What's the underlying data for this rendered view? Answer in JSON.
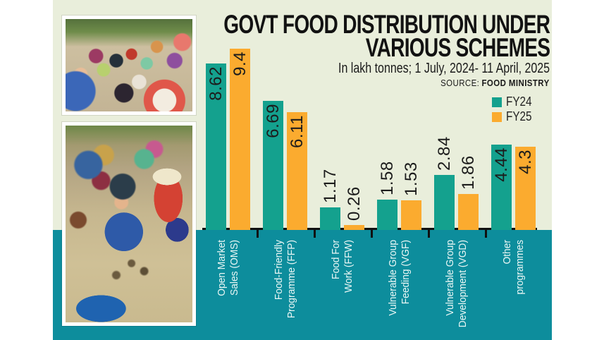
{
  "title": {
    "line1": "GOVT FOOD DISTRIBUTION UNDER",
    "line2": "VARIOUS SCHEMES"
  },
  "subtitle": "In lakh tonnes; 1 July, 2024- 11 April, 2025",
  "source": {
    "label": "SOURCE:",
    "value": "FOOD MINISTRY"
  },
  "legend": [
    {
      "label": "FY24",
      "color": "#14a18e"
    },
    {
      "label": "FY25",
      "color": "#fbab2f"
    }
  ],
  "colors": {
    "background_panel": "#e9eedb",
    "bottom_band": "#0d8d9c",
    "fy24_bar": "#14a18e",
    "fy25_bar": "#fbab2f",
    "axis": "#101010",
    "category_text": "#eaf7f5",
    "value_text": "#1c1c1c"
  },
  "photos": [
    {
      "name": "food-distribution-queue-photo"
    },
    {
      "name": "rice-weighing-distribution-photo"
    }
  ],
  "chart_data": {
    "type": "bar",
    "title": "GOVT FOOD DISTRIBUTION UNDER VARIOUS SCHEMES",
    "unit": "lakh tonnes",
    "period": "1 July, 2024- 11 April, 2025",
    "source": "FOOD MINISTRY",
    "grid": false,
    "value_axis_hidden": true,
    "legend_position": "top-right",
    "categories": [
      {
        "lines": [
          "Open Market",
          "Sales (OMS)"
        ]
      },
      {
        "lines": [
          "Food-Friendly",
          "Programme (FFP)"
        ]
      },
      {
        "lines": [
          "Food For",
          "Work (FFW)"
        ]
      },
      {
        "lines": [
          "Vulnerable Group",
          "Feeding (VGF)"
        ]
      },
      {
        "lines": [
          "Vulnerable Group",
          "Development (VGD)"
        ]
      },
      {
        "lines": [
          "Other",
          "programmes"
        ]
      }
    ],
    "series": [
      {
        "name": "FY24",
        "values": [
          8.62,
          6.69,
          1.17,
          1.58,
          2.84,
          4.44
        ],
        "labels": [
          "8.62",
          "6.69",
          "1.17",
          "1.58",
          "2.84",
          "4.44"
        ]
      },
      {
        "name": "FY25",
        "values": [
          9.4,
          6.11,
          0.26,
          1.53,
          1.86,
          4.3
        ],
        "labels": [
          "9.4",
          "6.11",
          "0.26",
          "1.53",
          "1.86",
          "4.3"
        ]
      }
    ]
  }
}
